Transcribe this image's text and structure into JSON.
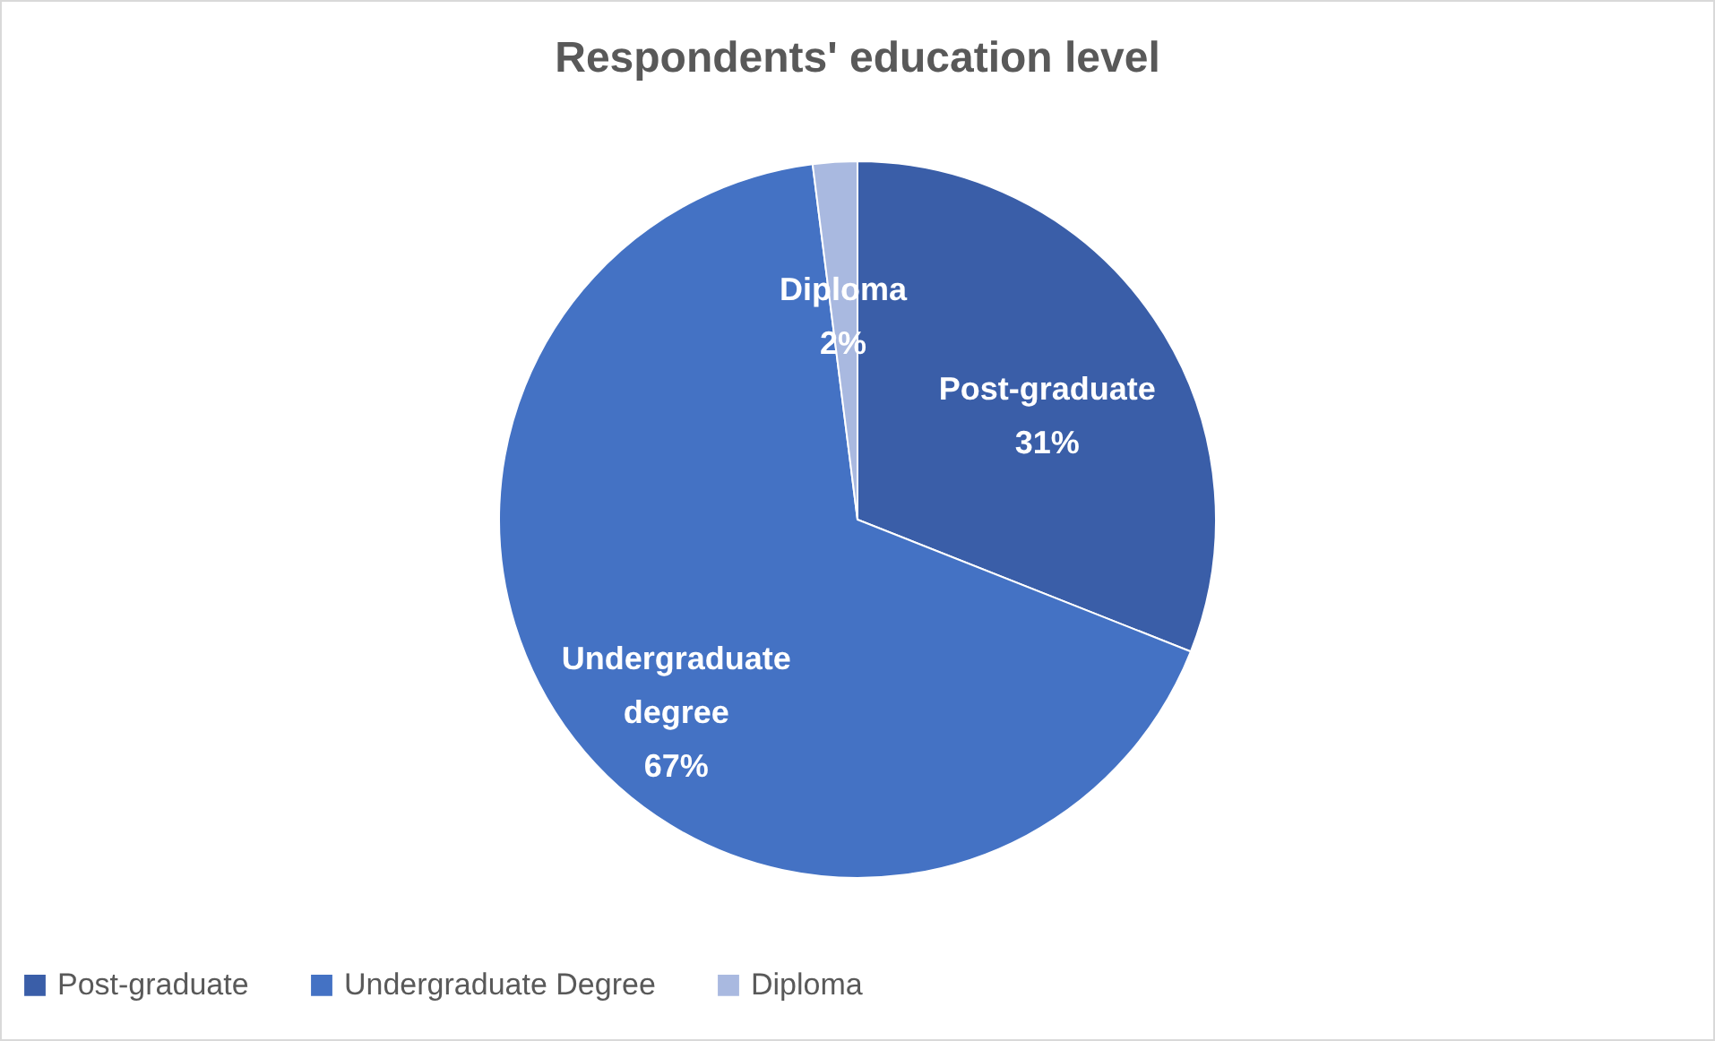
{
  "chart_data": {
    "type": "pie",
    "title": "Respondents' education level",
    "categories": [
      "Post-graduate",
      "Undergraduate Degree",
      "Diploma"
    ],
    "values": [
      31,
      67,
      2
    ],
    "colors": [
      "#3a5ea8",
      "#4472c4",
      "#a9b9e0"
    ],
    "value_labels": [
      "Post-graduate\n31%",
      "Undergraduate\ndegree\n67%",
      "Diploma\n2%"
    ],
    "legend": "bottom"
  }
}
